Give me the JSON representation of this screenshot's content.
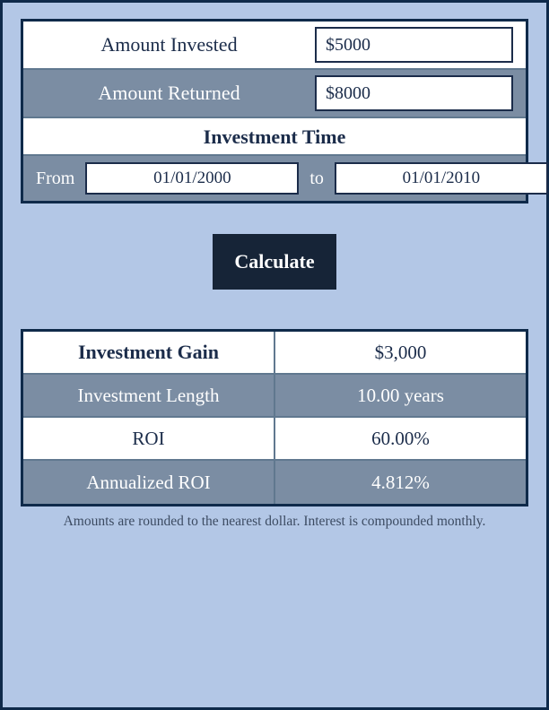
{
  "colors": {
    "page_bg": "#b3c7e6",
    "panel_border": "#0f2a4a",
    "row_grey": "#7b8da3",
    "row_white": "#ffffff",
    "text_dark": "#1b2c4a",
    "text_light": "#ffffff",
    "button_bg": "#162437",
    "divider": "#60788f"
  },
  "inputs": {
    "amount_invested_label": "Amount Invested",
    "amount_invested_value": "$5000",
    "amount_returned_label": "Amount Returned",
    "amount_returned_value": "$8000",
    "time_section_title": "Investment Time",
    "from_label": "From",
    "from_value": "01/01/2000",
    "to_label": "to",
    "to_value": "01/01/2010"
  },
  "actions": {
    "calculate_label": "Calculate"
  },
  "results": {
    "gain_label": "Investment Gain",
    "gain_value": "$3,000",
    "length_label": "Investment Length",
    "length_value": "10.00 years",
    "roi_label": "ROI",
    "roi_value": "60.00%",
    "annualized_label": "Annualized ROI",
    "annualized_value": "4.812%"
  },
  "footnote": "Amounts are rounded to the nearest dollar. Interest is compounded monthly."
}
